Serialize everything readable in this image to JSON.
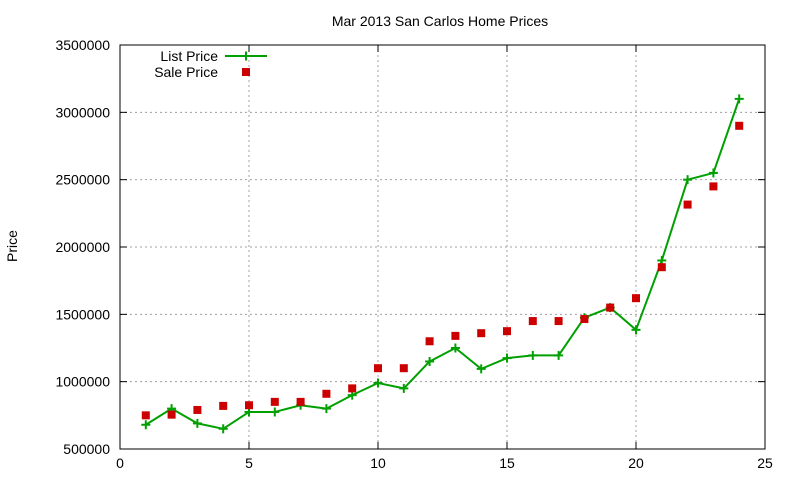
{
  "chart_data": {
    "type": "line",
    "title": "Mar 2013 San Carlos Home Prices",
    "xlabel": "",
    "ylabel": "Price",
    "xlim": [
      0,
      25
    ],
    "ylim": [
      500000,
      3500000
    ],
    "xticks": [
      "0",
      "5",
      "10",
      "15",
      "20",
      "25"
    ],
    "yticks": [
      "500000",
      "1000000",
      "1500000",
      "2000000",
      "2500000",
      "3000000",
      "3500000"
    ],
    "grid": true,
    "legend_position": "top-left",
    "x": [
      1,
      2,
      3,
      4,
      5,
      6,
      7,
      8,
      9,
      10,
      11,
      12,
      13,
      14,
      15,
      16,
      17,
      18,
      19,
      20,
      21,
      22,
      23,
      24
    ],
    "series": [
      {
        "name": "List Price",
        "style": "line-plus",
        "color": "#00a000",
        "values": [
          680000,
          800000,
          690000,
          650000,
          775000,
          775000,
          825000,
          800000,
          900000,
          990000,
          950000,
          1150000,
          1250000,
          1095000,
          1175000,
          1195000,
          1195000,
          1475000,
          1550000,
          1385000,
          1900000,
          2500000,
          2550000,
          3100000
        ]
      },
      {
        "name": "Sale Price",
        "style": "square-points",
        "color": "#cc0000",
        "values": [
          750000,
          755000,
          790000,
          820000,
          825000,
          850000,
          850000,
          910000,
          950000,
          1100000,
          1100000,
          1300000,
          1340000,
          1360000,
          1375000,
          1450000,
          1450000,
          1465000,
          1550000,
          1620000,
          1850000,
          2315000,
          2450000,
          2900000
        ]
      }
    ]
  }
}
